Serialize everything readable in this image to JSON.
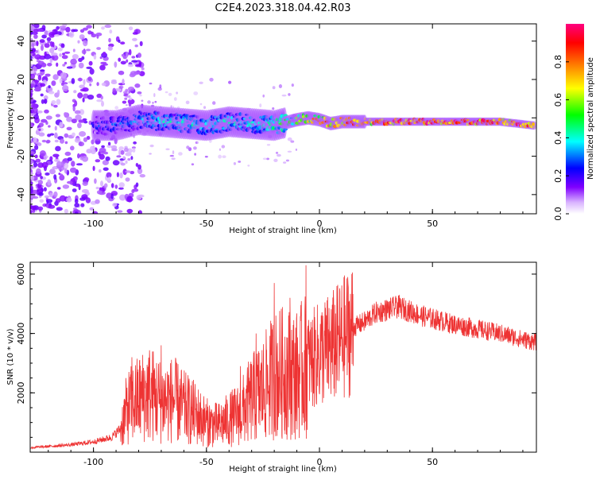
{
  "title": "C2E4.2023.318.04.42.R03",
  "chart_data": [
    {
      "type": "heatmap",
      "title": "C2E4.2023.318.04.42.R03",
      "xlabel": "Height of straight line (km)",
      "ylabel": "Frequency (Hz)",
      "xlim": [
        -128,
        96
      ],
      "ylim": [
        -50,
        49
      ],
      "x_ticks": [
        -100,
        -50,
        0,
        50
      ],
      "y_ticks": [
        -40,
        -20,
        0,
        20,
        40
      ],
      "x_tick_labels": [
        "-100",
        "-50",
        "0",
        "50"
      ],
      "y_tick_labels": [
        "-40",
        "-20",
        "0",
        "20",
        "40"
      ],
      "colorbar": {
        "label": "Normalized spectral amplitude",
        "range": [
          0,
          1
        ],
        "ticks": [
          0.0,
          0.2,
          0.4,
          0.6,
          0.8
        ],
        "tick_labels": [
          "0.0",
          "0.2",
          "0.4",
          "0.6",
          "0.8"
        ],
        "colors": [
          "#ffffff",
          "#d9b3ff",
          "#8000ff",
          "#0000ff",
          "#00ffff",
          "#00ff00",
          "#ffff00",
          "#ff8000",
          "#ff0000",
          "#ff0080"
        ]
      },
      "ridge": {
        "x": [
          -100,
          -90,
          -80,
          -70,
          -60,
          -50,
          -40,
          -30,
          -20,
          -10,
          -5,
          0,
          5,
          10,
          20,
          50,
          80,
          95
        ],
        "frequency": [
          -4,
          -4,
          -1,
          -2,
          -3,
          -4,
          -2,
          -3,
          -4,
          -1,
          0,
          -1,
          -3,
          -2,
          -2,
          -2,
          -2,
          -4
        ],
        "amplitude": [
          0.25,
          0.3,
          0.35,
          0.38,
          0.4,
          0.4,
          0.4,
          0.38,
          0.45,
          0.6,
          0.75,
          0.8,
          0.8,
          0.85,
          0.9,
          0.95,
          0.95,
          0.9
        ]
      }
    },
    {
      "type": "line",
      "xlabel": "Height of straight line (km)",
      "ylabel": "SNR (10 * v/v)",
      "xlim": [
        -128,
        96
      ],
      "ylim": [
        0,
        6400
      ],
      "x_ticks": [
        -100,
        -50,
        0,
        50
      ],
      "y_ticks": [
        2000,
        4000,
        6000
      ],
      "x_tick_labels": [
        "-100",
        "-50",
        "0",
        "50"
      ],
      "y_tick_labels": [
        "2000",
        "4000",
        "6000"
      ],
      "color": "#ee3333",
      "series": [
        {
          "x": [
            -128,
            -110,
            -100,
            -92,
            -88,
            -85,
            -80,
            -75,
            -70,
            -65,
            -60,
            -55,
            -50,
            -45,
            -40,
            -35,
            -30,
            -25,
            -20,
            -15,
            -10,
            -5,
            0,
            5,
            10,
            15,
            20,
            25,
            30,
            35,
            40,
            45,
            50,
            60,
            70,
            80,
            90,
            96
          ],
          "y": [
            150,
            250,
            350,
            500,
            800,
            1500,
            1800,
            2000,
            1700,
            1800,
            1500,
            1300,
            1000,
            900,
            1100,
            1300,
            1800,
            2100,
            2600,
            2700,
            2600,
            3000,
            3300,
            3500,
            3800,
            4200,
            4400,
            4700,
            4800,
            4900,
            4750,
            4600,
            4500,
            4300,
            4150,
            4000,
            3800,
            3700
          ]
        }
      ],
      "peaks": [
        {
          "x": -83,
          "y": 3200
        },
        {
          "x": -70,
          "y": 3600
        },
        {
          "x": -66,
          "y": 3000
        },
        {
          "x": -35,
          "y": 2900
        },
        {
          "x": -28,
          "y": 4000
        },
        {
          "x": -20,
          "y": 5700
        },
        {
          "x": -13,
          "y": 5200
        },
        {
          "x": -6,
          "y": 6300
        },
        {
          "x": -2,
          "y": 4100
        },
        {
          "x": 3,
          "y": 4600
        },
        {
          "x": 34,
          "y": 5200
        }
      ]
    }
  ]
}
